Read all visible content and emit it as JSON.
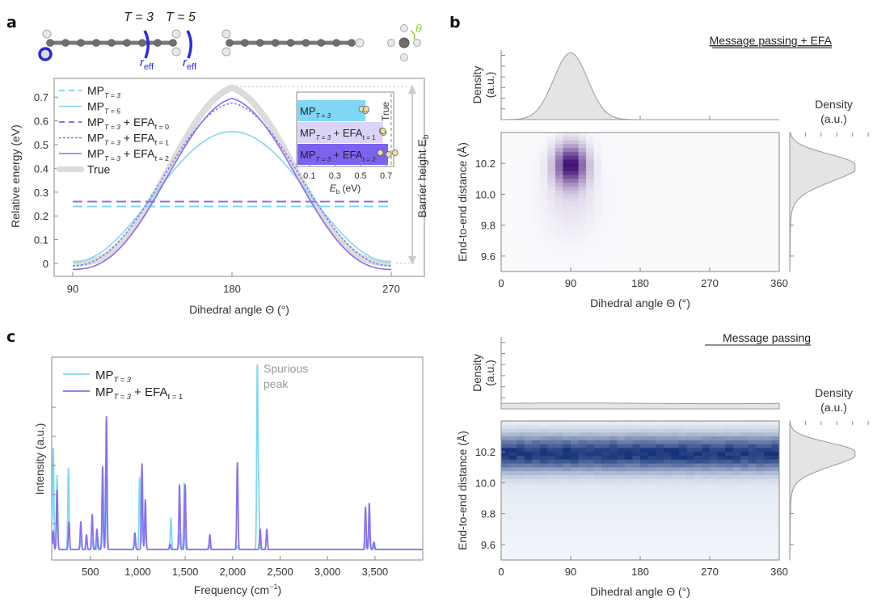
{
  "figure": {
    "panels": [
      "a",
      "b",
      "c"
    ]
  },
  "molecule_panel": {
    "label_T3": "T = 3",
    "label_T5": "T = 5",
    "label_reff": "r",
    "label_reff_sub": "eff",
    "theta_label": "θ",
    "colors": {
      "cutoff": "#2b2bdc",
      "theta": "#8fcf3a",
      "atom_c": "#6e6e6e",
      "atom_h": "#e8e8e8"
    }
  },
  "chart_data": [
    {
      "id": "a",
      "type": "line",
      "title": "",
      "xlabel": "Dihedral angle Θ (°)",
      "ylabel": "Relative energy (eV)",
      "xlim": [
        90,
        270
      ],
      "ylim": [
        -0.05,
        0.77
      ],
      "xticks": [
        "90",
        "180",
        "270"
      ],
      "yticks": [
        "0",
        "0.1",
        "0.2",
        "0.3",
        "0.4",
        "0.5",
        "0.6",
        "0.7"
      ],
      "right_annotation": "Barrier height E",
      "right_annotation_sub": "b",
      "series": [
        {
          "name": "MP",
          "sub": "T = 3",
          "suffix": "",
          "suffix_sub": "",
          "style": "dashed",
          "color": "#7fd8f2",
          "kind": "flat",
          "value": 0.24
        },
        {
          "name": "MP",
          "sub": "T = 5",
          "suffix": "",
          "suffix_sub": "",
          "style": "solid",
          "color": "#7fd8f2",
          "kind": "peak",
          "min": 0.005,
          "max": 0.555,
          "sharp": 0.0
        },
        {
          "name": "MP",
          "sub": "T = 3",
          "suffix": " + EFA",
          "suffix_sub": "ℓ = 0",
          "style": "dashed",
          "color": "#8a6ef0",
          "kind": "flat",
          "value": 0.26
        },
        {
          "name": "MP",
          "sub": "T = 3",
          "suffix": " + EFA",
          "suffix_sub": "ℓ = 1",
          "style": "dotted",
          "color": "#8a6ef0",
          "kind": "peak",
          "min": -0.01,
          "max": 0.675,
          "sharp": 0.5
        },
        {
          "name": "MP",
          "sub": "T = 3",
          "suffix": " + EFA",
          "suffix_sub": "ℓ = 2",
          "style": "solid",
          "color": "#8a6ef0",
          "kind": "peak",
          "min": -0.025,
          "max": 0.695,
          "sharp": 0.85
        },
        {
          "name": "True",
          "sub": "",
          "suffix": "",
          "suffix_sub": "",
          "style": "thick",
          "color": "#dcdcdc",
          "kind": "peak",
          "min": 0.0,
          "max": 0.74,
          "sharp": 1.0
        }
      ],
      "inset": {
        "type": "bar",
        "xlabel": "E",
        "xlabel_sub": "b",
        "xlabel_unit": " (eV)",
        "xticks": [
          "0.1",
          "0.3",
          "0.5",
          "0.7"
        ],
        "xlim": [
          0.0,
          0.78
        ],
        "true_value": 0.74,
        "true_label": "True",
        "bars": [
          {
            "name": "MP",
            "sub": "T = 3",
            "suffix": "",
            "suffix_sub": "",
            "value": 0.54,
            "color": "#7fd6f5",
            "points": [
              0.51,
              0.54,
              0.545
            ]
          },
          {
            "name": "MP",
            "sub": "T = 3",
            "suffix": " + EFA",
            "suffix_sub": "ℓ = 1",
            "value": 0.675,
            "color": "#dcd4f7",
            "points": [
              0.67,
              0.68,
              0.675
            ]
          },
          {
            "name": "MP",
            "sub": "T = 3",
            "suffix": " + EFA",
            "suffix_sub": "ℓ = 2",
            "value": 0.715,
            "color": "#7d62ef",
            "points": [
              0.655,
              0.72,
              0.77
            ]
          }
        ]
      }
    },
    {
      "id": "b-top",
      "type": "heatmap",
      "title": "Message passing + EFA",
      "xlabel": "Dihedral angle Θ (°)",
      "ylabel": "End-to-end distance (Å)",
      "xlim": [
        0,
        360
      ],
      "ylim": [
        9.5,
        10.4
      ],
      "xticks": [
        "0",
        "90",
        "180",
        "270",
        "360"
      ],
      "yticks": [
        "9.6",
        "9.8",
        "10.0",
        "10.2"
      ],
      "colormap": "purple",
      "peak": {
        "theta": 90,
        "distance": 10.19,
        "theta_sd": 14,
        "distance_sd": 0.09
      },
      "marginal_top": {
        "label": "Density",
        "label2": "(a.u.)",
        "shape": "gaussian",
        "center": 90,
        "sd": 22
      },
      "marginal_right": {
        "label": "Density",
        "label2": "(a.u.)",
        "shape": "gaussian",
        "center": 10.19,
        "sd": 0.07
      }
    },
    {
      "id": "b-bottom",
      "type": "heatmap",
      "title": "Message passing",
      "xlabel": "Dihedral angle Θ (°)",
      "ylabel": "End-to-end distance (Å)",
      "xlim": [
        0,
        360
      ],
      "ylim": [
        9.5,
        10.4
      ],
      "xticks": [
        "0",
        "90",
        "180",
        "270",
        "360"
      ],
      "yticks": [
        "9.6",
        "9.8",
        "10.0",
        "10.2"
      ],
      "colormap": "blue",
      "peak": {
        "theta": "uniform",
        "distance": 10.19,
        "distance_sd": 0.08
      },
      "marginal_top": {
        "label": "Density",
        "label2": "(a.u.)",
        "shape": "uniform"
      },
      "marginal_right": {
        "label": "Density",
        "label2": "(a.u.)",
        "shape": "gaussian",
        "center": 10.2,
        "sd": 0.06
      }
    },
    {
      "id": "c",
      "type": "line",
      "title": "",
      "xlabel": "Frequency (cm",
      "xlabel_sup": "−1",
      "xlabel_end": ")",
      "ylabel": "Intensity (a.u.)",
      "xlim": [
        100,
        4000
      ],
      "ylim": [
        0,
        1.0
      ],
      "xticks": [
        "500",
        "1,000",
        "1,500",
        "2,000",
        "2,500",
        "3,000",
        "3,500"
      ],
      "annotation": "Spurious",
      "annotation2": "peak",
      "series": [
        {
          "name": "MP",
          "sub": "T = 3",
          "suffix": "",
          "suffix_sub": "",
          "color": "#7fd8f2",
          "peaks": [
            [
              110,
              0.55
            ],
            [
              150,
              0.4
            ],
            [
              270,
              0.44
            ],
            [
              400,
              0.05
            ],
            [
              520,
              0.05
            ],
            [
              580,
              0.06
            ],
            [
              630,
              0.2
            ],
            [
              665,
              0.48
            ],
            [
              970,
              0.05
            ],
            [
              1020,
              0.39
            ],
            [
              1050,
              0.22
            ],
            [
              1080,
              0.17
            ],
            [
              1350,
              0.17
            ],
            [
              1440,
              0.08
            ],
            [
              1490,
              0.36
            ],
            [
              1750,
              0.03
            ],
            [
              2050,
              0.02
            ],
            [
              2260,
              1.0
            ],
            [
              2275,
              0.3
            ],
            [
              3410,
              0.05
            ],
            [
              3440,
              0.14
            ],
            [
              3480,
              0.03
            ]
          ]
        },
        {
          "name": "MP",
          "sub": "T = 3",
          "suffix": " + EFA",
          "suffix_sub": "ℓ = 1",
          "color": "#8a6ef0",
          "peaks": [
            [
              110,
              0.1
            ],
            [
              150,
              0.32
            ],
            [
              275,
              0.15
            ],
            [
              400,
              0.15
            ],
            [
              460,
              0.08
            ],
            [
              520,
              0.19
            ],
            [
              570,
              0.11
            ],
            [
              630,
              0.45
            ],
            [
              670,
              0.72
            ],
            [
              970,
              0.09
            ],
            [
              1045,
              0.47
            ],
            [
              1080,
              0.27
            ],
            [
              1340,
              0.03
            ],
            [
              1440,
              0.35
            ],
            [
              1500,
              0.35
            ],
            [
              1760,
              0.08
            ],
            [
              2050,
              0.47
            ],
            [
              2290,
              0.11
            ],
            [
              2360,
              0.11
            ],
            [
              3400,
              0.23
            ],
            [
              3440,
              0.25
            ],
            [
              3490,
              0.04
            ]
          ]
        }
      ]
    }
  ]
}
